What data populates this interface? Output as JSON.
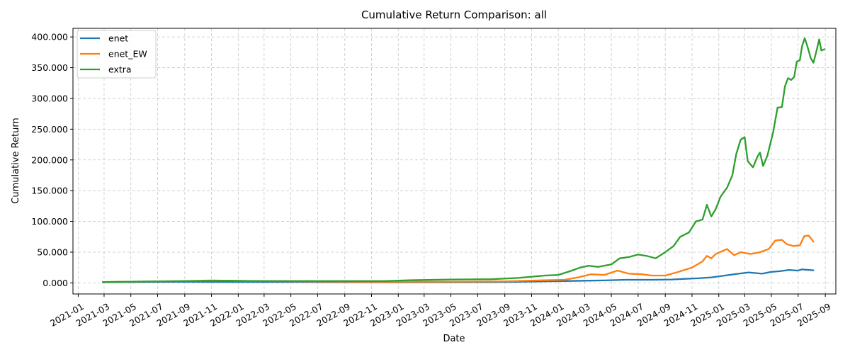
{
  "chart_data": {
    "type": "line",
    "title": "Cumulative Return Comparison: all",
    "xlabel": "Date",
    "ylabel": "Cumulative Return",
    "x_ticks": [
      "2021-01",
      "2021-03",
      "2021-05",
      "2021-07",
      "2021-09",
      "2021-11",
      "2022-01",
      "2022-03",
      "2022-05",
      "2022-07",
      "2022-09",
      "2022-11",
      "2023-01",
      "2023-03",
      "2023-05",
      "2023-07",
      "2023-09",
      "2023-11",
      "2024-01",
      "2024-03",
      "2024-05",
      "2024-07",
      "2024-09",
      "2024-11",
      "2025-01",
      "2025-03",
      "2025-05",
      "2025-07",
      "2025-09"
    ],
    "y_ticks": [
      0,
      50000,
      100000,
      150000,
      200000,
      250000,
      300000,
      350000,
      400000
    ],
    "y_tick_labels": [
      "0.000",
      "50.000",
      "100.000",
      "150.000",
      "200.000",
      "250.000",
      "300.000",
      "350.000",
      "400.000"
    ],
    "xlim": [
      "2020-12-20",
      "2025-09-25"
    ],
    "ylim": [
      -18000,
      414000
    ],
    "grid": true,
    "legend_position": "upper-left",
    "series": [
      {
        "name": "enet",
        "color": "#1f77b4",
        "points": [
          [
            "2021-02-26",
            1000
          ],
          [
            "2021-06-01",
            1500
          ],
          [
            "2021-09-01",
            1800
          ],
          [
            "2021-12-01",
            1500
          ],
          [
            "2022-03-01",
            1500
          ],
          [
            "2022-06-01",
            1500
          ],
          [
            "2022-09-01",
            1200
          ],
          [
            "2022-12-01",
            1000
          ],
          [
            "2023-03-01",
            1200
          ],
          [
            "2023-06-01",
            1200
          ],
          [
            "2023-09-01",
            1500
          ],
          [
            "2023-12-01",
            2500
          ],
          [
            "2024-01-15",
            3000
          ],
          [
            "2024-03-01",
            3500
          ],
          [
            "2024-04-15",
            4000
          ],
          [
            "2024-06-01",
            5000
          ],
          [
            "2024-08-01",
            5000
          ],
          [
            "2024-09-15",
            5500
          ],
          [
            "2024-10-15",
            6500
          ],
          [
            "2024-11-15",
            7500
          ],
          [
            "2024-12-15",
            9000
          ],
          [
            "2025-01-15",
            12000
          ],
          [
            "2025-02-15",
            15000
          ],
          [
            "2025-03-10",
            17000
          ],
          [
            "2025-04-10",
            15000
          ],
          [
            "2025-05-01",
            18000
          ],
          [
            "2025-05-20",
            19000
          ],
          [
            "2025-06-10",
            21000
          ],
          [
            "2025-06-30",
            20000
          ],
          [
            "2025-07-10",
            22000
          ],
          [
            "2025-07-25",
            21000
          ],
          [
            "2025-08-05",
            20500
          ]
        ]
      },
      {
        "name": "enet_EW",
        "color": "#ff7f0e",
        "points": [
          [
            "2021-02-26",
            1500
          ],
          [
            "2021-05-01",
            2000
          ],
          [
            "2021-09-01",
            3000
          ],
          [
            "2021-11-01",
            4000
          ],
          [
            "2022-02-01",
            3000
          ],
          [
            "2022-06-01",
            2500
          ],
          [
            "2022-09-01",
            2000
          ],
          [
            "2022-12-01",
            1800
          ],
          [
            "2023-03-01",
            2000
          ],
          [
            "2023-06-01",
            2000
          ],
          [
            "2023-09-01",
            2500
          ],
          [
            "2023-11-15",
            4000
          ],
          [
            "2024-01-15",
            5000
          ],
          [
            "2024-02-15",
            9000
          ],
          [
            "2024-03-15",
            14000
          ],
          [
            "2024-04-15",
            13000
          ],
          [
            "2024-05-15",
            20000
          ],
          [
            "2024-06-10",
            15000
          ],
          [
            "2024-07-10",
            14000
          ],
          [
            "2024-08-01",
            12000
          ],
          [
            "2024-09-01",
            12000
          ],
          [
            "2024-10-01",
            18000
          ],
          [
            "2024-11-01",
            25000
          ],
          [
            "2024-11-25",
            35000
          ],
          [
            "2024-12-05",
            44000
          ],
          [
            "2024-12-15",
            40000
          ],
          [
            "2024-12-25",
            47000
          ],
          [
            "2025-01-20",
            55000
          ],
          [
            "2025-02-05",
            45000
          ],
          [
            "2025-02-20",
            50000
          ],
          [
            "2025-03-15",
            47000
          ],
          [
            "2025-04-05",
            50000
          ],
          [
            "2025-04-25",
            55000
          ],
          [
            "2025-05-10",
            69000
          ],
          [
            "2025-05-25",
            70000
          ],
          [
            "2025-06-05",
            63000
          ],
          [
            "2025-06-20",
            60000
          ],
          [
            "2025-07-05",
            61000
          ],
          [
            "2025-07-15",
            76000
          ],
          [
            "2025-07-25",
            77000
          ],
          [
            "2025-08-05",
            67000
          ]
        ]
      },
      {
        "name": "extra",
        "color": "#2ca02c",
        "points": [
          [
            "2021-02-26",
            1500
          ],
          [
            "2021-05-01",
            2000
          ],
          [
            "2021-09-01",
            3000
          ],
          [
            "2021-12-01",
            3500
          ],
          [
            "2022-03-01",
            3000
          ],
          [
            "2022-06-01",
            3000
          ],
          [
            "2022-09-01",
            3000
          ],
          [
            "2022-12-01",
            3000
          ],
          [
            "2023-02-01",
            4500
          ],
          [
            "2023-05-01",
            5500
          ],
          [
            "2023-08-01",
            6000
          ],
          [
            "2023-10-01",
            8000
          ],
          [
            "2023-12-01",
            12000
          ],
          [
            "2024-01-01",
            13000
          ],
          [
            "2024-02-01",
            20000
          ],
          [
            "2024-02-20",
            25000
          ],
          [
            "2024-03-10",
            28000
          ],
          [
            "2024-04-01",
            26000
          ],
          [
            "2024-05-01",
            30000
          ],
          [
            "2024-05-20",
            40000
          ],
          [
            "2024-06-10",
            42000
          ],
          [
            "2024-07-01",
            46000
          ],
          [
            "2024-07-20",
            44000
          ],
          [
            "2024-08-10",
            40000
          ],
          [
            "2024-09-01",
            50000
          ],
          [
            "2024-09-20",
            60000
          ],
          [
            "2024-10-05",
            75000
          ],
          [
            "2024-10-25",
            82000
          ],
          [
            "2024-11-10",
            100000
          ],
          [
            "2024-11-25",
            103000
          ],
          [
            "2024-12-05",
            127000
          ],
          [
            "2024-12-15",
            108000
          ],
          [
            "2024-12-25",
            120000
          ],
          [
            "2025-01-05",
            140000
          ],
          [
            "2025-01-20",
            155000
          ],
          [
            "2025-02-01",
            175000
          ],
          [
            "2025-02-10",
            210000
          ],
          [
            "2025-02-20",
            233000
          ],
          [
            "2025-03-01",
            237000
          ],
          [
            "2025-03-08",
            198000
          ],
          [
            "2025-03-20",
            188000
          ],
          [
            "2025-03-30",
            205000
          ],
          [
            "2025-04-05",
            212000
          ],
          [
            "2025-04-12",
            190000
          ],
          [
            "2025-04-22",
            207000
          ],
          [
            "2025-05-05",
            245000
          ],
          [
            "2025-05-15",
            285000
          ],
          [
            "2025-05-25",
            286000
          ],
          [
            "2025-06-01",
            320000
          ],
          [
            "2025-06-08",
            333000
          ],
          [
            "2025-06-15",
            330000
          ],
          [
            "2025-06-22",
            335000
          ],
          [
            "2025-06-28",
            360000
          ],
          [
            "2025-07-05",
            362000
          ],
          [
            "2025-07-10",
            385000
          ],
          [
            "2025-07-16",
            398000
          ],
          [
            "2025-07-22",
            385000
          ],
          [
            "2025-07-30",
            365000
          ],
          [
            "2025-08-05",
            358000
          ],
          [
            "2025-08-12",
            378000
          ],
          [
            "2025-08-18",
            396000
          ],
          [
            "2025-08-23",
            378000
          ],
          [
            "2025-08-30",
            380000
          ]
        ]
      }
    ]
  }
}
